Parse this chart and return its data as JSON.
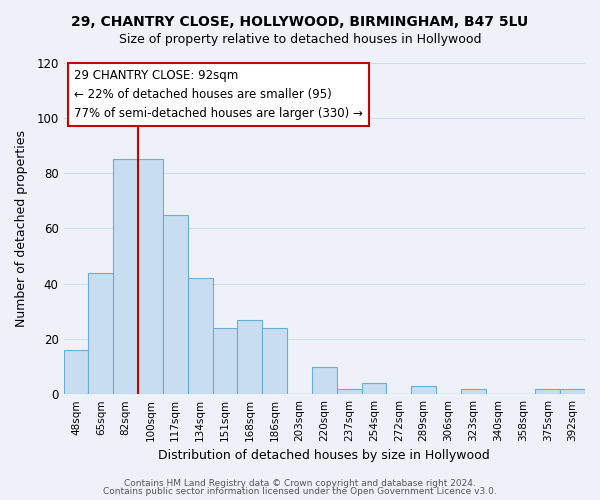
{
  "title_line1": "29, CHANTRY CLOSE, HOLLYWOOD, BIRMINGHAM, B47 5LU",
  "title_line2": "Size of property relative to detached houses in Hollywood",
  "xlabel": "Distribution of detached houses by size in Hollywood",
  "ylabel": "Number of detached properties",
  "bar_color": "#c8ddf0",
  "bar_edge_color": "#6aaed6",
  "categories": [
    "48sqm",
    "65sqm",
    "82sqm",
    "100sqm",
    "117sqm",
    "134sqm",
    "151sqm",
    "168sqm",
    "186sqm",
    "203sqm",
    "220sqm",
    "237sqm",
    "254sqm",
    "272sqm",
    "289sqm",
    "306sqm",
    "323sqm",
    "340sqm",
    "358sqm",
    "375sqm",
    "392sqm"
  ],
  "values": [
    16,
    44,
    85,
    85,
    65,
    42,
    24,
    27,
    24,
    0,
    10,
    2,
    4,
    0,
    3,
    0,
    2,
    0,
    0,
    2,
    2
  ],
  "ylim": [
    0,
    120
  ],
  "yticks": [
    0,
    20,
    40,
    60,
    80,
    100,
    120
  ],
  "property_line_x": 2.5,
  "annotation_title": "29 CHANTRY CLOSE: 92sqm",
  "annotation_line1": "← 22% of detached houses are smaller (95)",
  "annotation_line2": "77% of semi-detached houses are larger (330) →",
  "annotation_box_color": "white",
  "annotation_box_edge_color": "#cc0000",
  "vline_color": "#cc0000",
  "grid_color": "#d0dce8",
  "background_color": "#eef2f8",
  "footer_line1": "Contains HM Land Registry data © Crown copyright and database right 2024.",
  "footer_line2": "Contains public sector information licensed under the Open Government Licence v3.0."
}
